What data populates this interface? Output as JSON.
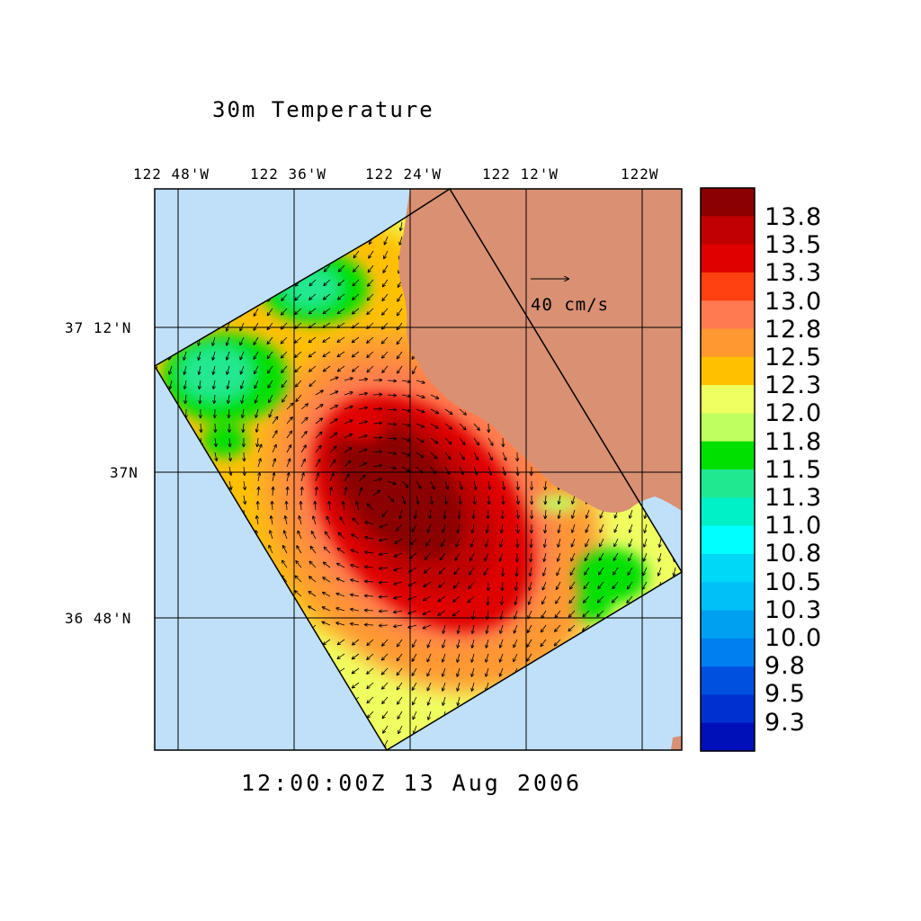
{
  "title": "30m Temperature",
  "timestamp": "12:00:00Z  13 Aug 2006",
  "longitude_labels": [
    "122 48'W",
    "122 36'W",
    "122 24'W",
    "122 12'W",
    "122W"
  ],
  "latitude_labels": [
    "37 12'N",
    "37N",
    "36 48'N"
  ],
  "vector_reference": {
    "label": "40 cm/s",
    "speed": 40,
    "unit": "cm/s"
  },
  "colorbar": {
    "labels": [
      "13.8",
      "13.5",
      "13.3",
      "13.0",
      "12.8",
      "12.5",
      "12.3",
      "12.0",
      "11.8",
      "11.5",
      "11.3",
      "11.0",
      "10.8",
      "10.5",
      "10.3",
      "10.0",
      "9.8",
      "9.5",
      "9.3"
    ],
    "colors": [
      "#8b0000",
      "#c00000",
      "#e00000",
      "#ff4010",
      "#ff7a50",
      "#ff9830",
      "#ffc000",
      "#f0ff60",
      "#c0ff60",
      "#00e000",
      "#20e890",
      "#00f0c8",
      "#00ffff",
      "#00d8f8",
      "#00c0f8",
      "#00a0f0",
      "#0080f0",
      "#0050e0",
      "#0030d0",
      "#0010b8"
    ]
  },
  "colors": {
    "ocean": "#bfe0f8",
    "land": "#d99073",
    "warm_core": "#8b0000"
  }
}
